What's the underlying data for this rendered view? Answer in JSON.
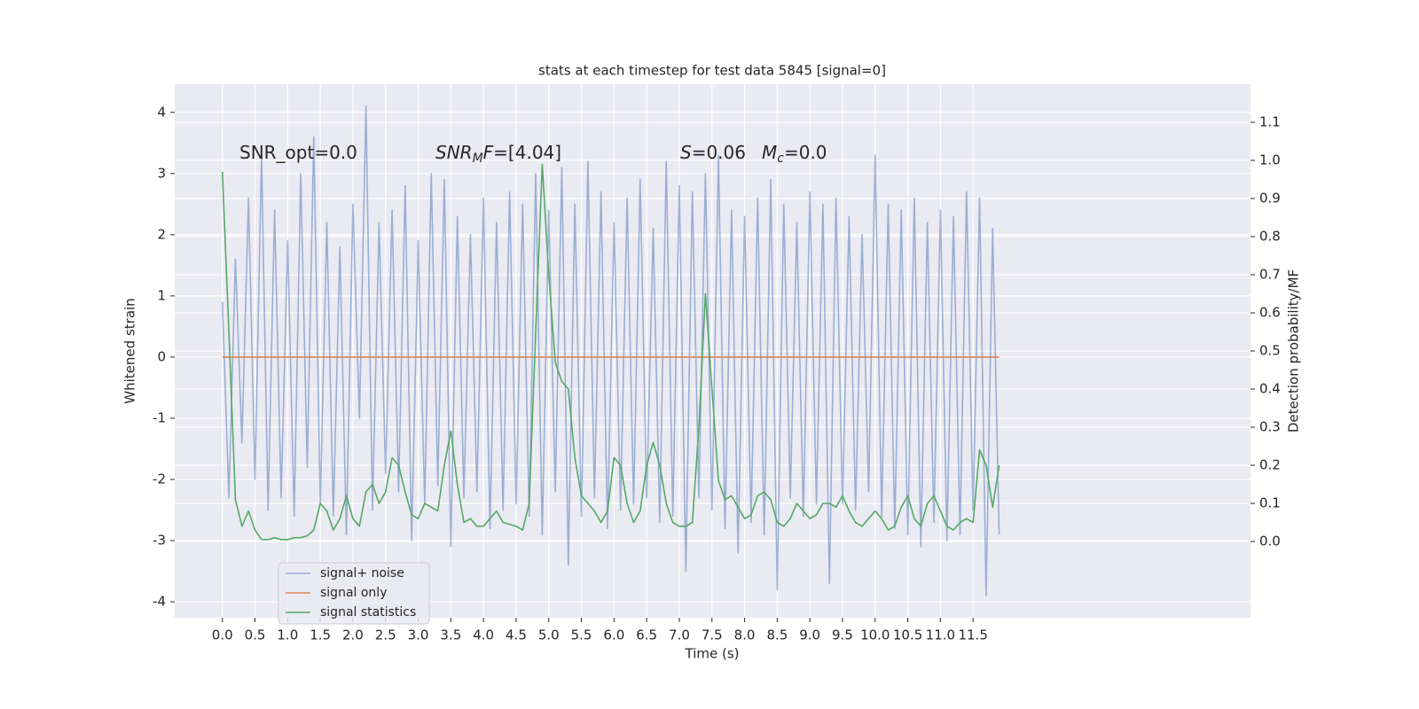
{
  "chart_data": {
    "type": "line",
    "title": "stats at each timestep for test data 5845 [signal=0]",
    "xlabel": "Time (s)",
    "ylabel": "Whitened strain",
    "y2label": "Detection probability/MF",
    "annotations": [
      [
        {
          "text": "SNR_opt=0.0"
        }
      ],
      [
        {
          "text": "SNR",
          "italic": true
        },
        {
          "text": "M",
          "italic": true,
          "sub": true
        },
        {
          "text": "F",
          "italic": true
        },
        {
          "text": "=[4.04]"
        }
      ],
      [
        {
          "text": "S",
          "italic": true
        },
        {
          "text": "=0.06"
        }
      ],
      [
        {
          "text": "M",
          "italic": true
        },
        {
          "text": "c",
          "italic": true,
          "sub": true
        },
        {
          "text": "=0.0"
        }
      ]
    ],
    "x": [
      0,
      0.1,
      0.2,
      0.3,
      0.4,
      0.5,
      0.6,
      0.7,
      0.8,
      0.9,
      1,
      1.1,
      1.2,
      1.3,
      1.4,
      1.5,
      1.6,
      1.7,
      1.8,
      1.9,
      2,
      2.1,
      2.2,
      2.3,
      2.4,
      2.5,
      2.6,
      2.7,
      2.8,
      2.9,
      3,
      3.1,
      3.2,
      3.3,
      3.4,
      3.5,
      3.6,
      3.7,
      3.8,
      3.9,
      4,
      4.1,
      4.2,
      4.3,
      4.4,
      4.5,
      4.6,
      4.7,
      4.8,
      4.9,
      5,
      5.1,
      5.2,
      5.3,
      5.4,
      5.5,
      5.6,
      5.7,
      5.8,
      5.9,
      6,
      6.1,
      6.2,
      6.3,
      6.4,
      6.5,
      6.6,
      6.7,
      6.8,
      6.9,
      7,
      7.1,
      7.2,
      7.3,
      7.4,
      7.5,
      7.6,
      7.7,
      7.8,
      7.9,
      8,
      8.1,
      8.2,
      8.3,
      8.4,
      8.5,
      8.6,
      8.7,
      8.8,
      8.9,
      9,
      9.1,
      9.2,
      9.3,
      9.4,
      9.5,
      9.6,
      9.7,
      9.8,
      9.9,
      10,
      10.1,
      10.2,
      10.3,
      10.4,
      10.5,
      10.6,
      10.7,
      10.8,
      10.9,
      11,
      11.1,
      11.2,
      11.3,
      11.4,
      11.5,
      11.6,
      11.7,
      11.8,
      11.9
    ],
    "series": [
      {
        "name": "signal+ noise",
        "color": "#4c72b0",
        "opacity": 0.5,
        "values": [
          0.9,
          -2.3,
          1.6,
          -1.4,
          2.6,
          -2.0,
          3.3,
          -2.5,
          2.4,
          -2.3,
          1.9,
          -2.6,
          3.0,
          -1.8,
          3.6,
          -2.4,
          2.2,
          -2.6,
          1.8,
          -2.9,
          2.5,
          -1.0,
          4.1,
          -2.5,
          2.2,
          -1.9,
          2.4,
          -2.2,
          2.8,
          -3.0,
          1.9,
          -2.4,
          3.0,
          -2.1,
          2.9,
          -3.1,
          2.3,
          -2.3,
          2.0,
          -2.2,
          2.6,
          -2.8,
          2.2,
          -2.5,
          2.7,
          -2.4,
          2.5,
          -2.6,
          3.0,
          -2.9,
          2.4,
          -2.2,
          3.1,
          -3.4,
          2.5,
          -2.6,
          3.2,
          -2.3,
          2.7,
          -2.8,
          2.2,
          -2.5,
          2.6,
          -2.4,
          2.9,
          -2.3,
          2.1,
          -2.7,
          3.2,
          -2.6,
          2.8,
          -3.5,
          2.7,
          -2.3,
          3.0,
          -2.5,
          3.3,
          -2.8,
          2.4,
          -3.2,
          2.3,
          -2.7,
          2.6,
          -2.9,
          2.9,
          -3.8,
          2.5,
          -2.3,
          2.2,
          -2.6,
          2.7,
          -2.4,
          2.5,
          -3.7,
          2.6,
          -2.4,
          2.3,
          -2.5,
          2.0,
          -2.2,
          3.3,
          -2.6,
          2.5,
          -2.8,
          2.4,
          -2.9,
          2.6,
          -3.1,
          2.2,
          -2.7,
          2.4,
          -3.0,
          2.3,
          -2.9,
          2.7,
          -2.5,
          2.6,
          -3.9,
          2.1,
          -2.9
        ]
      },
      {
        "name": "signal only",
        "color": "#dd8452",
        "values": [
          0,
          0,
          0,
          0,
          0,
          0,
          0,
          0,
          0,
          0,
          0,
          0,
          0,
          0,
          0,
          0,
          0,
          0,
          0,
          0,
          0,
          0,
          0,
          0,
          0,
          0,
          0,
          0,
          0,
          0,
          0,
          0,
          0,
          0,
          0,
          0,
          0,
          0,
          0,
          0,
          0,
          0,
          0,
          0,
          0,
          0,
          0,
          0,
          0,
          0,
          0,
          0,
          0,
          0,
          0,
          0,
          0,
          0,
          0,
          0,
          0,
          0,
          0,
          0,
          0,
          0,
          0,
          0,
          0,
          0,
          0,
          0,
          0,
          0,
          0,
          0,
          0,
          0,
          0,
          0,
          0,
          0,
          0,
          0,
          0,
          0,
          0,
          0,
          0,
          0,
          0,
          0,
          0,
          0,
          0,
          0,
          0,
          0,
          0,
          0,
          0,
          0,
          0,
          0,
          0,
          0,
          0,
          0,
          0,
          0,
          0,
          0,
          0,
          0,
          0,
          0,
          0,
          0,
          0,
          0
        ]
      },
      {
        "name": "signal statistics",
        "color": "#55a868",
        "axis": "y2",
        "values": [
          0.97,
          0.55,
          0.11,
          0.04,
          0.08,
          0.03,
          0.005,
          0.005,
          0.01,
          0.005,
          0.005,
          0.01,
          0.01,
          0.015,
          0.03,
          0.1,
          0.08,
          0.03,
          0.06,
          0.12,
          0.06,
          0.04,
          0.13,
          0.15,
          0.1,
          0.13,
          0.22,
          0.2,
          0.13,
          0.07,
          0.06,
          0.1,
          0.09,
          0.08,
          0.2,
          0.29,
          0.15,
          0.05,
          0.06,
          0.04,
          0.04,
          0.06,
          0.08,
          0.05,
          0.045,
          0.04,
          0.03,
          0.1,
          0.55,
          0.99,
          0.7,
          0.47,
          0.42,
          0.4,
          0.22,
          0.12,
          0.1,
          0.08,
          0.05,
          0.08,
          0.22,
          0.2,
          0.1,
          0.05,
          0.08,
          0.2,
          0.26,
          0.2,
          0.1,
          0.05,
          0.04,
          0.04,
          0.05,
          0.3,
          0.65,
          0.4,
          0.16,
          0.11,
          0.12,
          0.09,
          0.06,
          0.07,
          0.12,
          0.13,
          0.11,
          0.05,
          0.04,
          0.06,
          0.1,
          0.08,
          0.06,
          0.07,
          0.1,
          0.1,
          0.09,
          0.12,
          0.08,
          0.05,
          0.04,
          0.06,
          0.08,
          0.06,
          0.03,
          0.04,
          0.09,
          0.12,
          0.06,
          0.04,
          0.1,
          0.12,
          0.08,
          0.04,
          0.03,
          0.05,
          0.06,
          0.05,
          0.24,
          0.2,
          0.09,
          0.2
        ]
      }
    ],
    "xlim": [
      -0.73,
      15.75
    ],
    "ylim": [
      -4.26,
      4.46
    ],
    "y2lim": [
      -0.2,
      1.2
    ],
    "xticks": [
      {
        "value": 0,
        "label": "0.0"
      },
      {
        "value": 0.5,
        "label": "0.5"
      },
      {
        "value": 1,
        "label": "1.0"
      },
      {
        "value": 1.5,
        "label": "1.5"
      },
      {
        "value": 2,
        "label": "2.0"
      },
      {
        "value": 2.5,
        "label": "2.5"
      },
      {
        "value": 3,
        "label": "3.0"
      },
      {
        "value": 3.5,
        "label": "3.5"
      },
      {
        "value": 4,
        "label": "4.0"
      },
      {
        "value": 4.5,
        "label": "4.5"
      },
      {
        "value": 5,
        "label": "5.0"
      },
      {
        "value": 5.5,
        "label": "5.5"
      },
      {
        "value": 6,
        "label": "6.0"
      },
      {
        "value": 6.5,
        "label": "6.5"
      },
      {
        "value": 7,
        "label": "7.0"
      },
      {
        "value": 7.5,
        "label": "7.5"
      },
      {
        "value": 8,
        "label": "8.0"
      },
      {
        "value": 8.5,
        "label": "8.5"
      },
      {
        "value": 9,
        "label": "9.0"
      },
      {
        "value": 9.5,
        "label": "9.5"
      },
      {
        "value": 10,
        "label": "10.0"
      },
      {
        "value": 10.5,
        "label": "10.5"
      },
      {
        "value": 11,
        "label": "11.0"
      },
      {
        "value": 11.5,
        "label": "11.5"
      }
    ],
    "yticks": [
      -4,
      -3,
      -2,
      -1,
      0,
      1,
      2,
      3,
      4
    ],
    "y2ticks": [
      {
        "value": 0,
        "label": "0.0"
      },
      {
        "value": 0.1,
        "label": "0.1"
      },
      {
        "value": 0.2,
        "label": "0.2"
      },
      {
        "value": 0.3,
        "label": "0.3"
      },
      {
        "value": 0.4,
        "label": "0.4"
      },
      {
        "value": 0.5,
        "label": "0.5"
      },
      {
        "value": 0.6,
        "label": "0.6"
      },
      {
        "value": 0.7,
        "label": "0.7"
      },
      {
        "value": 0.8,
        "label": "0.8"
      },
      {
        "value": 0.9,
        "label": "0.9"
      },
      {
        "value": 1,
        "label": "1.0"
      },
      {
        "value": 1.1,
        "label": "1.1"
      }
    ],
    "grid": true,
    "legend": "lower left",
    "background": "#eaeaf2"
  }
}
